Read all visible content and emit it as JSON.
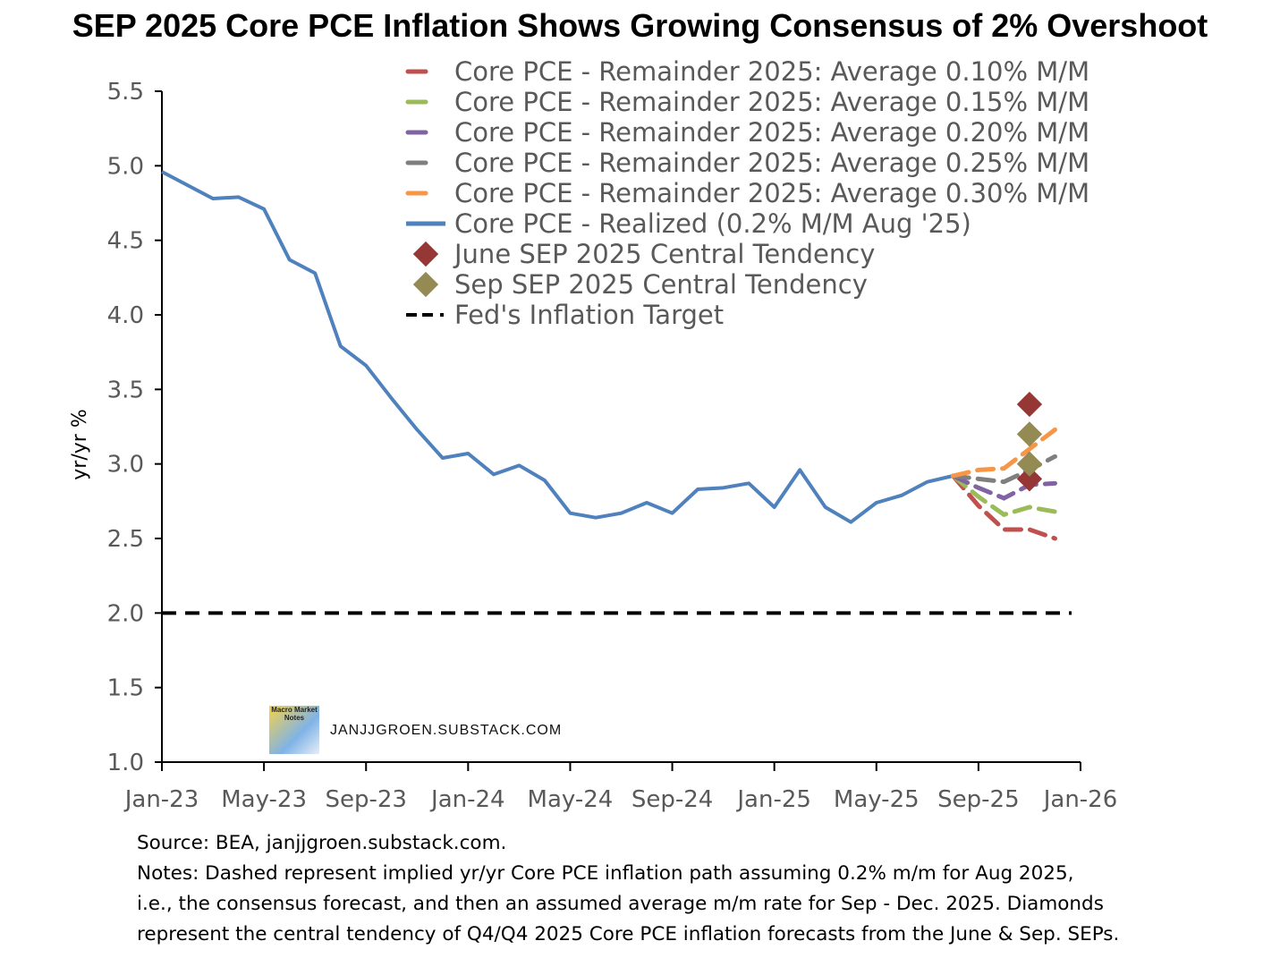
{
  "chart_data": {
    "type": "line",
    "title": "SEP 2025 Core PCE Inflation Shows Growing Consensus of 2% Overshoot",
    "ylabel": "yr/yr %",
    "xlabel": "",
    "ylim": [
      1.0,
      5.5
    ],
    "yticks": [
      "1.0",
      "1.5",
      "2.0",
      "2.5",
      "3.0",
      "3.5",
      "4.0",
      "4.5",
      "5.0",
      "5.5"
    ],
    "xticks": [
      "Jan-23",
      "May-23",
      "Sep-23",
      "Jan-24",
      "May-24",
      "Sep-24",
      "Jan-25",
      "May-25",
      "Sep-25",
      "Jan-26"
    ],
    "x_start": "Jan-23",
    "x_end": "Jan-26",
    "realized": {
      "name": "Core PCE - Realized (0.2% M/M Aug '25)",
      "color": "#4f81bd",
      "values": [
        4.96,
        4.87,
        4.78,
        4.79,
        4.71,
        4.37,
        4.28,
        3.79,
        3.66,
        3.44,
        3.23,
        3.04,
        3.07,
        2.93,
        2.99,
        2.89,
        2.67,
        2.64,
        2.67,
        2.74,
        2.67,
        2.83,
        2.84,
        2.87,
        2.71,
        2.96,
        2.71,
        2.61,
        2.74,
        2.79,
        2.88,
        2.92
      ]
    },
    "scenarios": [
      {
        "name": "Core PCE - Remainder 2025: Average 0.10% M/M",
        "color": "#c0504d",
        "values": [
          2.92,
          2.72,
          2.56,
          2.56,
          2.5
        ]
      },
      {
        "name": "Core PCE - Remainder 2025: Average 0.15% M/M",
        "color": "#9bbb59",
        "values": [
          2.92,
          2.78,
          2.66,
          2.71,
          2.68
        ]
      },
      {
        "name": "Core PCE - Remainder 2025: Average 0.20% M/M",
        "color": "#8064a2",
        "values": [
          2.92,
          2.84,
          2.77,
          2.86,
          2.87
        ]
      },
      {
        "name": "Core PCE - Remainder 2025: Average 0.25% M/M",
        "color": "#7f7f7f",
        "values": [
          2.92,
          2.9,
          2.88,
          2.96,
          3.05
        ]
      },
      {
        "name": "Core PCE - Remainder 2025: Average 0.30% M/M",
        "color": "#f79646",
        "values": [
          2.92,
          2.96,
          2.97,
          3.1,
          3.23
        ]
      }
    ],
    "scenario_months": [
      "Aug-25",
      "Sep-25",
      "Oct-25",
      "Nov-25",
      "Dec-25"
    ],
    "june_sep": {
      "name": "June SEP 2025 Central Tendency",
      "color": "#953735",
      "values": [
        2.9,
        3.4
      ]
    },
    "sep_sep": {
      "name": "Sep SEP 2025 Central Tendency",
      "color": "#948a54",
      "values": [
        3.0,
        3.2
      ]
    },
    "target": {
      "name": "Fed's Inflation Target",
      "value": 2.0,
      "color": "#000000"
    },
    "legend_position": "top-right"
  },
  "watermark": {
    "logo_text": "Macro Market Notes",
    "site": "JANJJGROEN.SUBSTACK.COM"
  },
  "notes": [
    "Source: BEA, janjjgroen.substack.com.",
    "Notes: Dashed represent implied yr/yr Core PCE inflation path assuming 0.2% m/m for Aug 2025,",
    "i.e., the consensus forecast, and then an assumed average m/m rate for Sep - Dec. 2025. Diamonds",
    "represent the central tendency of Q4/Q4 2025 Core PCE inflation forecasts from the June & Sep. SEPs."
  ]
}
